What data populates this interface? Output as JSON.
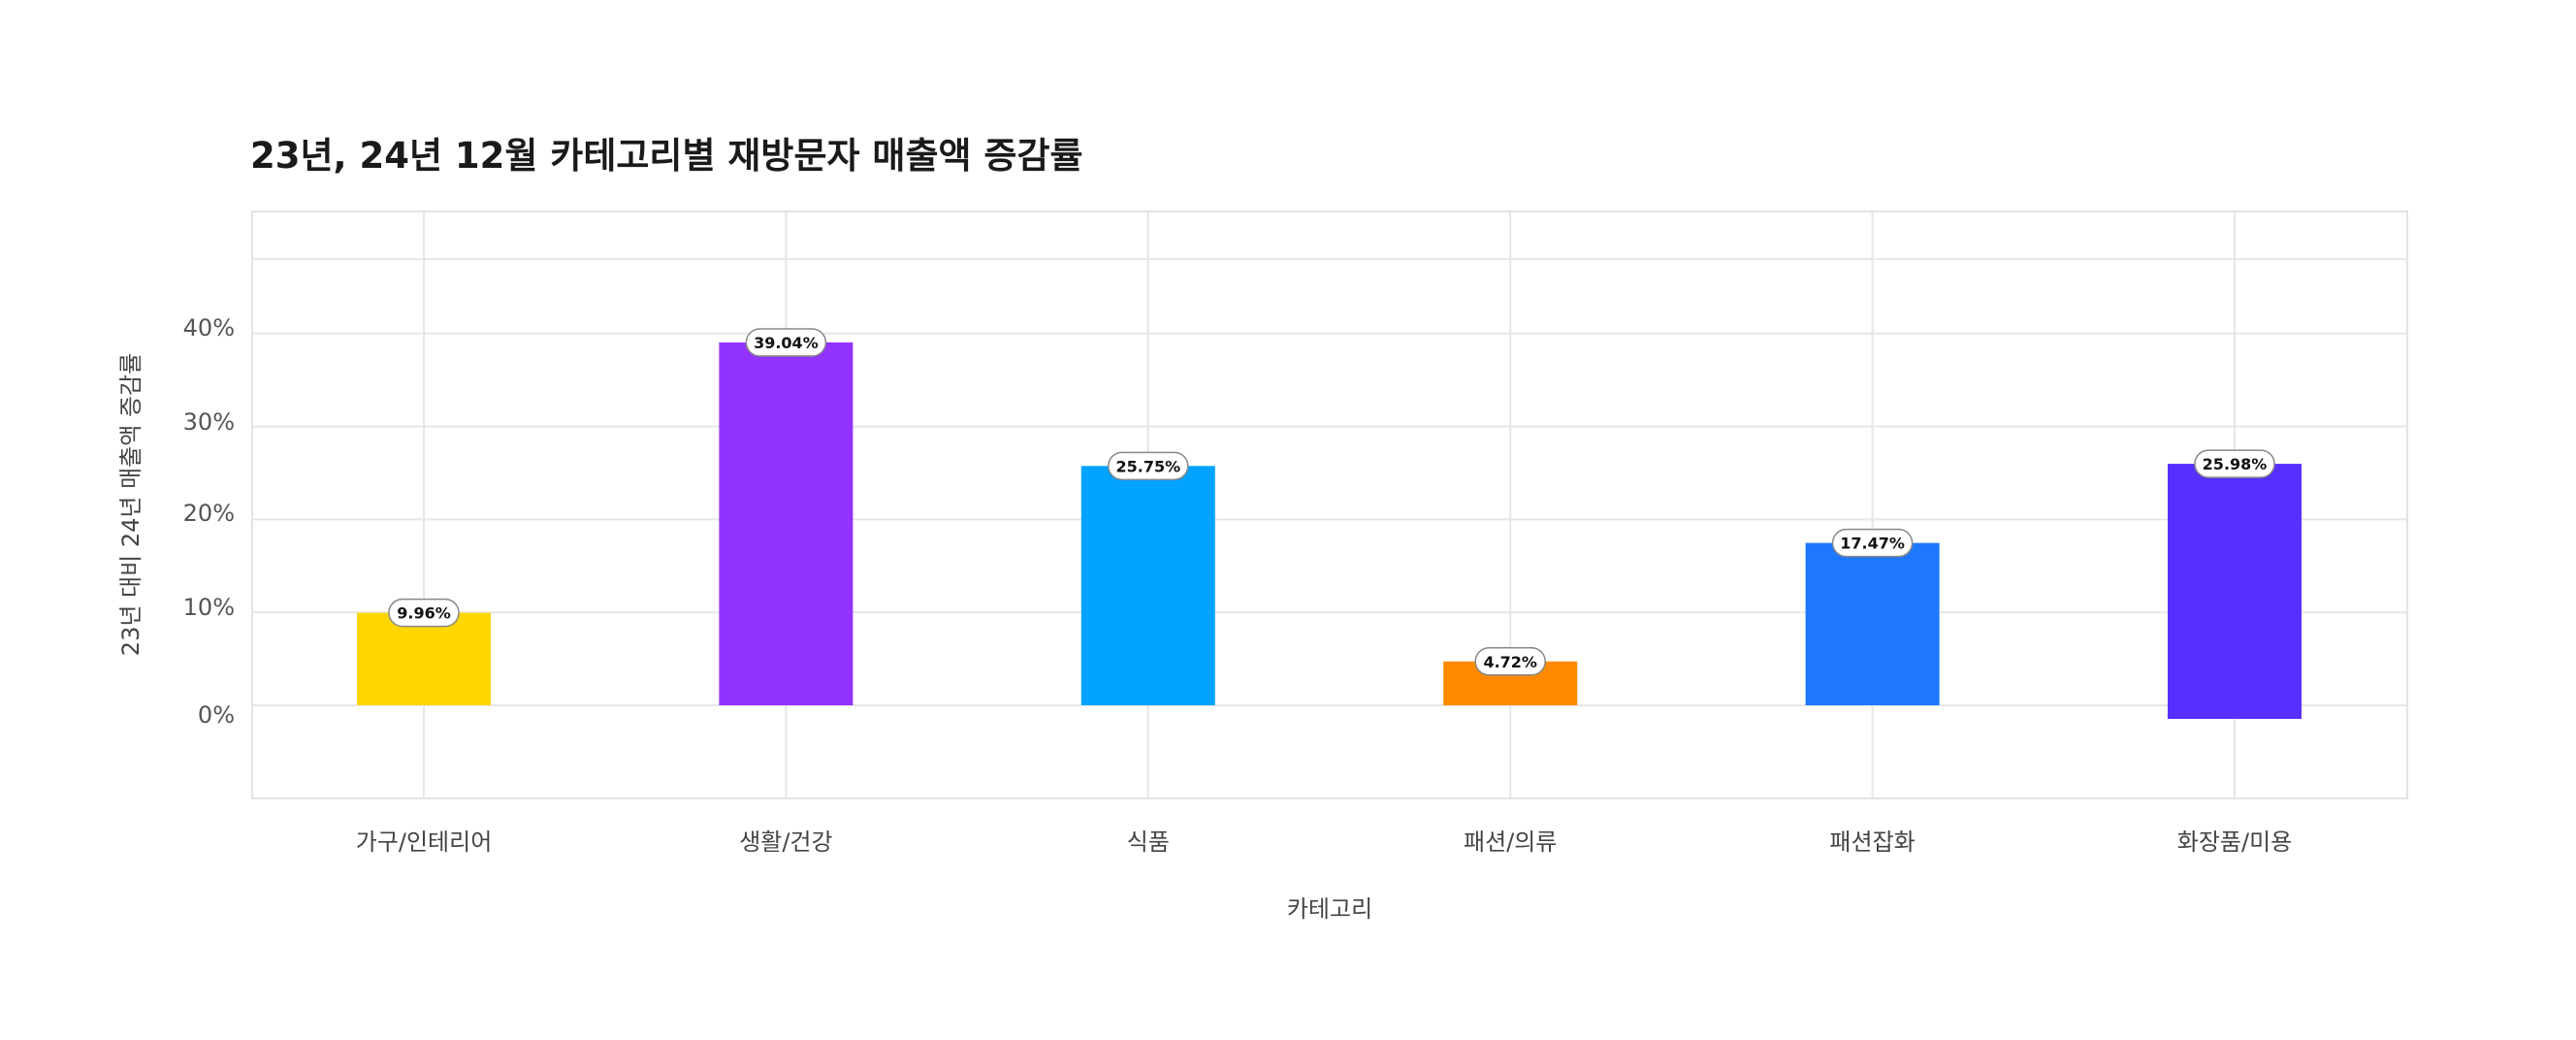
{
  "chart_data": {
    "type": "bar",
    "title": "23년, 24년 12월 카테고리별 재방문자 매출액 증감률",
    "xlabel": "카테고리",
    "ylabel": "23년 대비 24년 매출액 증감률",
    "categories": [
      "가구/인테리어",
      "생활/건강",
      "식품",
      "패션/의류",
      "패션잡화",
      "화장품/미용"
    ],
    "values": [
      9.96,
      39.04,
      25.75,
      4.72,
      17.47,
      25.98
    ],
    "data_labels": [
      "9.96%",
      "39.04%",
      "25.75%",
      "4.72%",
      "17.47%",
      "25.98%"
    ],
    "colors": [
      "#FFD600",
      "#9333FF",
      "#00A3FF",
      "#FF8A00",
      "#1E78FF",
      "#5630FF"
    ],
    "yticks": [
      0,
      10,
      20,
      30,
      40
    ],
    "ytick_labels": [
      "0%",
      "10%",
      "20%",
      "30%",
      "40%"
    ],
    "ylim": [
      -10,
      50
    ],
    "grid": true,
    "legend": "none"
  }
}
